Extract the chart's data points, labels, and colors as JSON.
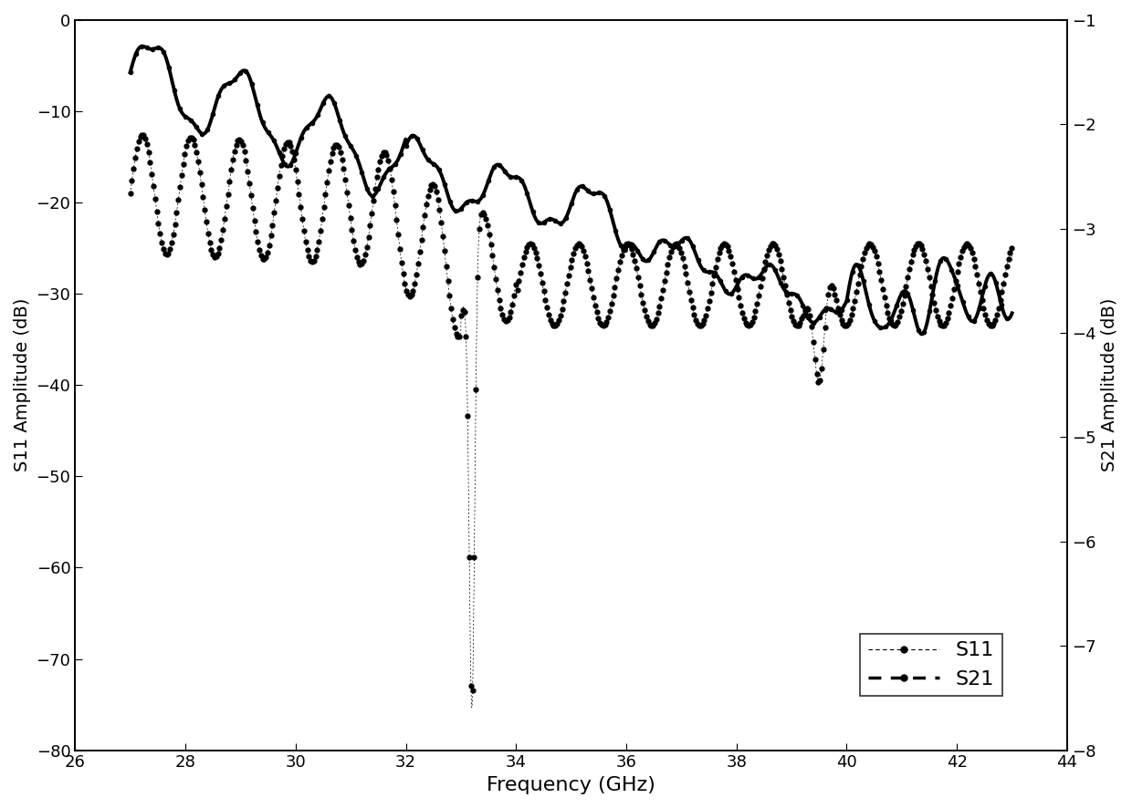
{
  "xlabel": "Frequency (GHz)",
  "ylabel_left": "S11 Amplitude (dB)",
  "ylabel_right": "S21 Amplitude (dB)",
  "xlim": [
    26,
    44
  ],
  "ylim_left": [
    -80,
    0
  ],
  "ylim_right": [
    -8,
    -1
  ],
  "xticks": [
    26,
    28,
    30,
    32,
    34,
    36,
    38,
    40,
    42,
    44
  ],
  "yticks_left": [
    0,
    -10,
    -20,
    -30,
    -40,
    -50,
    -60,
    -70,
    -80
  ],
  "yticks_right": [
    -1,
    -2,
    -3,
    -4,
    -5,
    -6,
    -7,
    -8
  ],
  "legend_labels": [
    "S11",
    "S21"
  ],
  "background_color": "#ffffff",
  "line_color": "#000000"
}
